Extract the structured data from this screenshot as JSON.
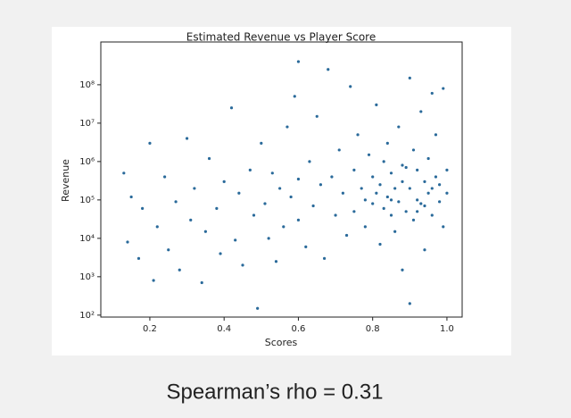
{
  "chart_data": {
    "type": "scatter",
    "title": "Estimated Revenue vs Player Score",
    "x_label": "Scores",
    "y_label": "Revenue",
    "annotation": "Spearman’s rho = 0.31",
    "color": "#2a6a9a",
    "log_y": true,
    "xlim": [
      0.068,
      1.041
    ],
    "ylim": [
      89,
      1300000000
    ],
    "xticks": [
      0.2,
      0.4,
      0.6,
      0.8,
      {
        "value": 1,
        "label": "1.0"
      }
    ],
    "yticks": [
      {
        "value": 100,
        "label": "10²"
      },
      {
        "value": 1000,
        "label": "10³"
      },
      {
        "value": 10000,
        "label": "10⁴"
      },
      {
        "value": 100000,
        "label": "10⁵"
      },
      {
        "value": 1000000,
        "label": "10⁶"
      },
      {
        "value": 10000000,
        "label": "10⁷"
      },
      {
        "value": 100000000,
        "label": "10⁸"
      }
    ],
    "x": [
      0.13,
      0.14,
      0.15,
      0.17,
      0.18,
      0.2,
      0.21,
      0.22,
      0.24,
      0.25,
      0.27,
      0.28,
      0.3,
      0.31,
      0.32,
      0.34,
      0.35,
      0.36,
      0.38,
      0.39,
      0.4,
      0.42,
      0.43,
      0.44,
      0.45,
      0.47,
      0.48,
      0.49,
      0.5,
      0.51,
      0.52,
      0.53,
      0.54,
      0.55,
      0.56,
      0.57,
      0.58,
      0.59,
      0.6,
      0.6,
      0.6,
      0.62,
      0.63,
      0.64,
      0.65,
      0.66,
      0.67,
      0.68,
      0.69,
      0.7,
      0.71,
      0.72,
      0.73,
      0.74,
      0.75,
      0.75,
      0.76,
      0.77,
      0.78,
      0.78,
      0.79,
      0.8,
      0.8,
      0.81,
      0.81,
      0.82,
      0.82,
      0.83,
      0.83,
      0.84,
      0.84,
      0.85,
      0.85,
      0.86,
      0.86,
      0.87,
      0.87,
      0.88,
      0.88,
      0.89,
      0.89,
      0.9,
      0.9,
      0.91,
      0.91,
      0.92,
      0.92,
      0.93,
      0.93,
      0.94,
      0.94,
      0.95,
      0.95,
      0.96,
      0.96,
      0.97,
      0.97,
      0.98,
      0.98,
      0.99,
      0.99,
      1.0,
      1.0,
      0.9,
      0.85,
      0.92,
      0.96,
      0.88,
      0.94
    ],
    "values": [
      500000,
      8000,
      120000,
      3000,
      60000,
      3000000,
      800,
      20000,
      400000,
      5000,
      90000,
      1500,
      4000000,
      30000,
      200000,
      700,
      15000,
      1200000,
      60000,
      4000,
      300000,
      25000000,
      9000,
      150000,
      2000,
      600000,
      40000,
      150,
      3000000,
      80000,
      10000,
      500000,
      2500,
      200000,
      20000,
      8000000,
      120000,
      50000000,
      30000,
      350000,
      400000000,
      6000,
      1000000,
      70000,
      15000000,
      250000,
      3000,
      250000000,
      400000,
      40000,
      2000000,
      150000,
      12000,
      90000000,
      600000,
      50000,
      5000000,
      200000,
      20000,
      100000,
      1500000,
      80000,
      400000,
      30000000,
      150000,
      7000,
      250000,
      1000000,
      60000,
      120000,
      3000000,
      40000,
      500000,
      200000,
      15000,
      8000000,
      90000,
      300000,
      1500,
      700000,
      50000,
      150000000,
      200000,
      2000000,
      30000,
      100000,
      600000,
      20000000,
      80000,
      300000,
      5000,
      1200000,
      150000,
      60000000,
      40000,
      400000,
      5000000,
      90000,
      250000,
      80000000,
      20000,
      150000,
      600000,
      200,
      100000,
      50000,
      200000,
      800000,
      70000
    ]
  }
}
